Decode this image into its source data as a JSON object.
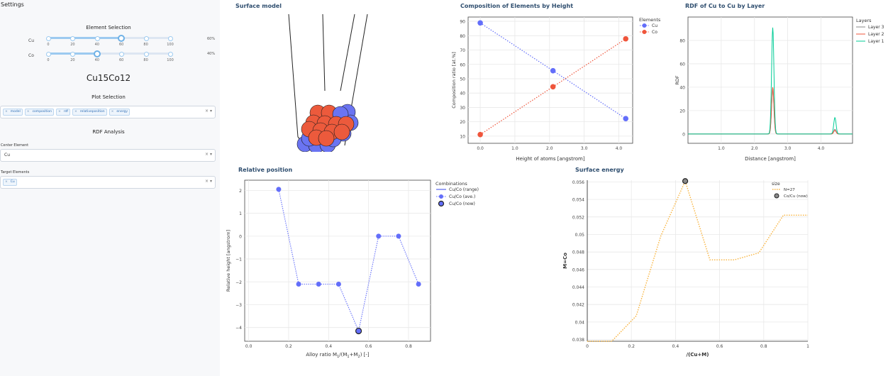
{
  "settings_title": "Settings",
  "element_selection": {
    "heading": "Element Selection",
    "sliders": [
      {
        "label": "Cu",
        "value": 60,
        "value_text": "60%"
      },
      {
        "label": "Co",
        "value": 40,
        "value_text": "40%"
      }
    ],
    "ticks": [
      "0",
      "20",
      "40",
      "60",
      "80",
      "100"
    ]
  },
  "formula": "Cu15Co12",
  "plot_selection": {
    "heading": "Plot Selection",
    "tags": [
      "model",
      "composition",
      "rdf",
      "relativeposition",
      "energy"
    ]
  },
  "rdf_analysis": {
    "heading": "RDF Analysis",
    "center_label": "Center Element",
    "center_value": "Cu",
    "target_label": "Target Elements",
    "target_tags": [
      "Cu"
    ]
  },
  "select_controls": {
    "clear": "×",
    "caret": "▾"
  },
  "panels": {
    "surface": "Surface model",
    "composition": "Composition of Elements by Height",
    "rdf": "RDF of Cu to Cu by Layer",
    "relpos": "Relative position",
    "energy": "Surface energy"
  },
  "colors": {
    "cu": "#636efa",
    "co": "#ef553b",
    "energy": "#f8b33c",
    "rdf_l3": "#888888",
    "rdf_l2": "#ef553b",
    "rdf_l1": "#00cc96"
  },
  "chart_data": [
    {
      "type": "line",
      "title": "Composition of Elements by Height",
      "xlabel": "Height of atoms [angstrom]",
      "ylabel": "Composition ratio [at.%]",
      "legend_title": "Elements",
      "xlim": [
        -0.35,
        4.4
      ],
      "ylim": [
        5,
        93
      ],
      "x_ticks": [
        "0.0",
        "1.0",
        "2.0",
        "3.0",
        "4.0"
      ],
      "y_ticks": [
        "10",
        "20",
        "30",
        "40",
        "50",
        "60",
        "70",
        "80",
        "90"
      ],
      "x": [
        0.0,
        2.1,
        4.2
      ],
      "series": [
        {
          "name": "Cu",
          "values": [
            88.9,
            55.6,
            22.2
          ]
        },
        {
          "name": "Co",
          "values": [
            11.1,
            44.4,
            77.8
          ]
        }
      ]
    },
    {
      "type": "line",
      "title": "RDF of Cu to Cu by Layer",
      "xlabel": "Distance [angstrom]",
      "ylabel": "RDF",
      "legend_title": "Layers",
      "xlim": [
        0,
        4.95
      ],
      "ylim": [
        -8,
        100
      ],
      "x_ticks": [
        "1.0",
        "2.0",
        "3.0",
        "4.0"
      ],
      "y_ticks": [
        "0",
        "20",
        "40",
        "60",
        "80"
      ],
      "peaks_x": [
        2.55,
        4.42
      ],
      "series": [
        {
          "name": "Layer 3",
          "values": [
            38,
            4
          ]
        },
        {
          "name": "Layer 2",
          "values": [
            40,
            3
          ]
        },
        {
          "name": "Layer 1",
          "values": [
            91,
            14
          ]
        }
      ]
    },
    {
      "type": "line",
      "title": "Relative position",
      "xlabel": "Alloy ratio M",
      "xlabel_parts": [
        "Alloy ratio M",
        "1",
        "/(M",
        "1",
        "+M",
        "2",
        ") [-]"
      ],
      "ylabel": "Relative height [angstrom]",
      "legend_title": "Combinations",
      "legend_entries": [
        "Cu/Co (range)",
        "Cu/Co (ave.)",
        "Cu/Co (now)"
      ],
      "xlim": [
        -0.02,
        0.91
      ],
      "ylim": [
        -4.6,
        2.45
      ],
      "x_ticks": [
        "0.0",
        "0.2",
        "0.4",
        "0.6",
        "0.8"
      ],
      "y_ticks": [
        "2",
        "1",
        "0",
        "−1",
        "−2",
        "−3",
        "−4"
      ],
      "x": [
        0.15,
        0.25,
        0.35,
        0.45,
        0.55,
        0.65,
        0.75,
        0.85
      ],
      "series": [
        {
          "name": "Cu/Co (ave.)",
          "values": [
            2.05,
            -2.1,
            -2.1,
            -2.1,
            -4.15,
            0.0,
            0.0,
            -2.1
          ]
        }
      ],
      "now": {
        "x": 0.55,
        "y": -4.15
      }
    },
    {
      "type": "line",
      "title": "Surface energy",
      "xlabel": "/(Cu+M)",
      "ylabel": "M=Co",
      "legend_title": "size",
      "legend_entries": [
        "N=27",
        "Co/Cu (now)"
      ],
      "xlim": [
        0,
        1
      ],
      "ylim": [
        0.0378,
        0.0562
      ],
      "x_ticks": [
        "0",
        "0.2",
        "0.4",
        "0.6",
        "0.8",
        "1"
      ],
      "y_ticks": [
        "0.038",
        "0.04",
        "0.042",
        "0.044",
        "0.046",
        "0.048",
        "0.05",
        "0.052",
        "0.054",
        "0.056"
      ],
      "x": [
        0.0,
        0.111,
        0.222,
        0.333,
        0.444,
        0.556,
        0.667,
        0.778,
        0.889,
        1.0
      ],
      "series": [
        {
          "name": "N=27",
          "values": [
            0.0378,
            0.0378,
            0.0407,
            0.0498,
            0.0561,
            0.0471,
            0.0471,
            0.0479,
            0.0522,
            0.0522
          ]
        }
      ],
      "now": {
        "x": 0.444,
        "y": 0.0561
      }
    }
  ]
}
